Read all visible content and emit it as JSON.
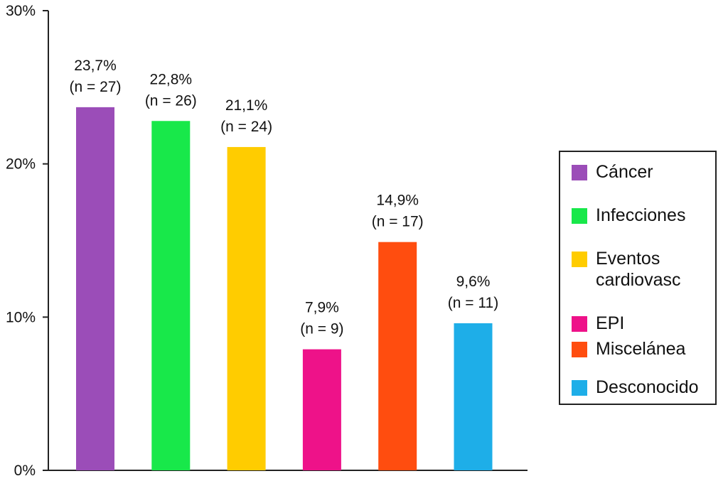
{
  "chart_data": {
    "type": "bar",
    "categories": [
      "Cáncer",
      "Infecciones",
      "Eventos\ncardiovasc",
      "EPI",
      "Miscelánea",
      "Desconocido"
    ],
    "values": [
      23.7,
      22.8,
      21.1,
      7.9,
      14.9,
      9.6
    ],
    "data_labels": [
      {
        "pct": "23,7%",
        "n": "(n = 27)"
      },
      {
        "pct": "22,8%",
        "n": "(n = 26)"
      },
      {
        "pct": "21,1%",
        "n": "(n = 24)"
      },
      {
        "pct": "7,9%",
        "n": "(n = 9)"
      },
      {
        "pct": "14,9%",
        "n": "(n = 17)"
      },
      {
        "pct": "9,6%",
        "n": "(n = 11)"
      }
    ],
    "colors": [
      "#9b4db8",
      "#18e84a",
      "#ffcc00",
      "#ee1289",
      "#ff4d0f",
      "#1eaee8"
    ],
    "y_ticks": [
      "0%",
      "10%",
      "20%",
      "30%"
    ],
    "y_tick_values": [
      0,
      10,
      20,
      30
    ],
    "ylim": [
      0,
      30
    ],
    "title": "",
    "xlabel": "",
    "ylabel": "",
    "grid": false,
    "legend_position": "right"
  }
}
